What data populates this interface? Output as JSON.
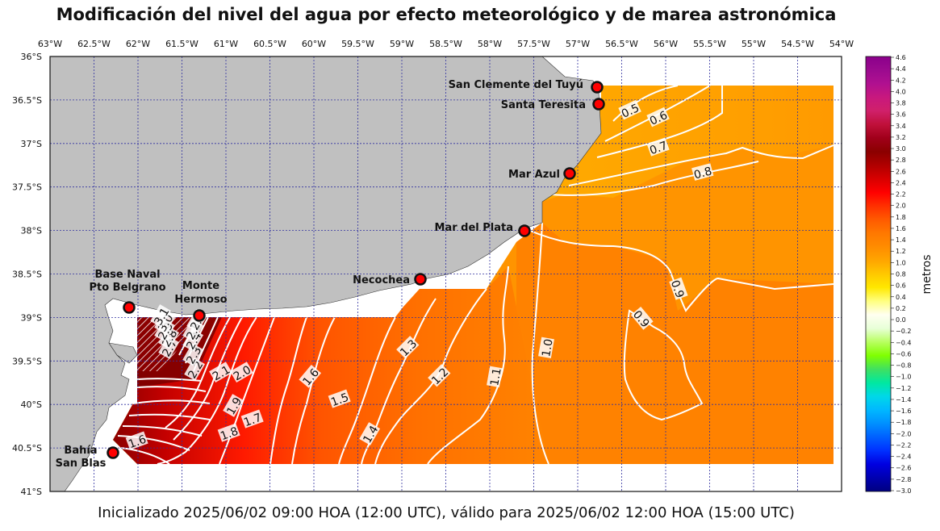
{
  "title": "Modificación del nivel del agua por efecto meteorológico y de marea astronómica",
  "footer": "Inicializado 2025/06/02 09:00 HOA (12:00 UTC), válido para 2025/06/02 12:00 HOA (15:00 UTC)",
  "lon_ticks": [
    "63°W",
    "62.5°W",
    "62°W",
    "61.5°W",
    "61°W",
    "60.5°W",
    "60°W",
    "59.5°W",
    "59°W",
    "58.5°W",
    "58°W",
    "57.5°W",
    "57°W",
    "56.5°W",
    "56°W",
    "55.5°W",
    "55°W",
    "54.5°W",
    "54°W"
  ],
  "lat_ticks": [
    "36°S",
    "36.5°S",
    "37°S",
    "37.5°S",
    "38°S",
    "38.5°S",
    "39°S",
    "39.5°S",
    "40°S",
    "40.5°S",
    "41°S"
  ],
  "colorbar": {
    "label": "metros",
    "ticks": [
      "4.6",
      "4.4",
      "4.2",
      "4.0",
      "3.8",
      "3.6",
      "3.4",
      "3.2",
      "3.0",
      "2.8",
      "2.6",
      "2.4",
      "2.2",
      "2.0",
      "1.8",
      "1.6",
      "1.4",
      "1.2",
      "1.0",
      "0.8",
      "0.6",
      "0.4",
      "0.2",
      "0.0",
      "−0.2",
      "−0.4",
      "−0.6",
      "−0.8",
      "−1.0",
      "−1.2",
      "−1.4",
      "−1.6",
      "−1.8",
      "−2.0",
      "−2.2",
      "−2.4",
      "−2.6",
      "−2.8",
      "−3.0"
    ],
    "colors": [
      "#8b008b",
      "#9b0a8f",
      "#b01090",
      "#c8187e",
      "#d0206a",
      "#c0103a",
      "#a0001a",
      "#8b0000",
      "#b00000",
      "#d80000",
      "#ff0000",
      "#ff3000",
      "#ff5a00",
      "#ff7800",
      "#ff8c00",
      "#ffa500",
      "#ffc800",
      "#ffe800",
      "#ffff80",
      "#fffff0",
      "#e8ffd8",
      "#b8ff60",
      "#80ff00",
      "#40e060",
      "#00e8a0",
      "#00d8e8",
      "#00b8ff",
      "#0090ff",
      "#0060ff",
      "#0030ff",
      "#0000e0",
      "#0000b0",
      "#000080"
    ]
  },
  "stations": [
    {
      "name": "San Clemente del Tuyú"
    },
    {
      "name": "Santa Teresita"
    },
    {
      "name": "Mar Azul"
    },
    {
      "name": "Mar del Plata"
    },
    {
      "name": "Necochea"
    },
    {
      "name_line1": "Base Naval",
      "name_line2": "Pto Belgrano"
    },
    {
      "name_line1": "Monte",
      "name_line2": "Hermoso"
    },
    {
      "name_line1": "Bahía",
      "name_line2": "San Blas"
    }
  ],
  "contour_labels": [
    "0.5",
    "0.6",
    "0.7",
    "0.8",
    "0.9",
    "0.9",
    "1.0",
    "1.1",
    "1.2",
    "1.3",
    "1.4",
    "1.5",
    "1.6",
    "1.6",
    "1.7",
    "1.8",
    "1.9",
    "2.0",
    "2.1",
    "2.2",
    "2.3",
    "2.4",
    "2.5",
    "2.6",
    "2.7",
    "2.8",
    "2.9",
    "3.0",
    "3.1"
  ],
  "colors": {
    "land": "#c0c0c0",
    "grid": "#3030a0",
    "station_fill": "#ff0000"
  }
}
